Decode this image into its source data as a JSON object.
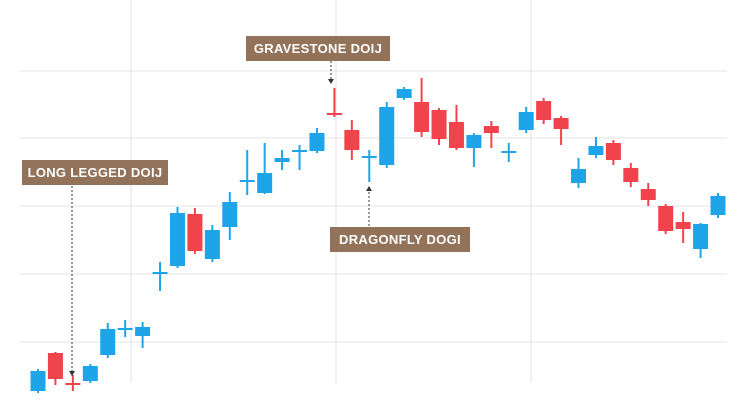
{
  "chart_data": {
    "type": "candlestick",
    "open": [
      23,
      61,
      31,
      33,
      59,
      85,
      78,
      141,
      148,
      200,
      155,
      187,
      233,
      221,
      252,
      263,
      263,
      301,
      284,
      257,
      249,
      316,
      312,
      304,
      292,
      266,
      288,
      262,
      284,
      313,
      296,
      231,
      259,
      271,
      246,
      225,
      208,
      192,
      165,
      199
    ],
    "high": [
      45,
      62,
      39,
      50,
      91,
      94,
      92,
      152,
      207,
      206,
      189,
      222,
      264,
      271,
      264,
      269,
      286,
      326,
      294,
      264,
      312,
      327,
      336,
      306,
      309,
      281,
      293,
      271,
      307,
      316,
      298,
      256,
      277,
      274,
      251,
      231,
      210,
      202,
      191,
      221
    ],
    "low": [
      21,
      29,
      23,
      31,
      56,
      77,
      66,
      123,
      146,
      160,
      152,
      174,
      219,
      220,
      244,
      244,
      261,
      297,
      254,
      232,
      246,
      314,
      277,
      269,
      264,
      247,
      266,
      252,
      281,
      290,
      269,
      226,
      256,
      249,
      227,
      208,
      180,
      171,
      156,
      196
    ],
    "close": [
      43,
      35,
      30,
      48,
      85,
      86,
      87,
      142,
      201,
      163,
      184,
      212,
      234,
      241,
      256,
      264,
      281,
      300,
      264,
      258,
      307,
      325,
      282,
      275,
      266,
      279,
      281,
      263,
      302,
      294,
      285,
      245,
      268,
      254,
      232,
      214,
      183,
      185,
      190,
      218
    ],
    "up_color": "#1ea4e9",
    "down_color": "#f1434b",
    "ylim": [
      0,
      414
    ],
    "yticks": [
      72,
      140,
      208,
      276,
      343
    ],
    "grid": true,
    "annotations": [
      "LONG LEGGED DOIJ",
      "GRAVESTONE DOIJ",
      "DRAGONFLY DOGI"
    ],
    "annotation_color": "#93725a"
  }
}
